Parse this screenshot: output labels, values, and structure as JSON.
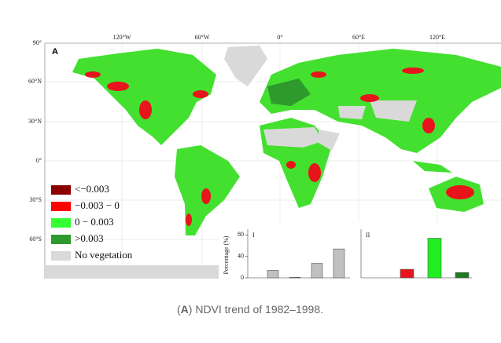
{
  "figure": {
    "panel": "A",
    "map": {
      "lat_labels": [
        "90°",
        "60°N",
        "30°N",
        "0°",
        "30°S",
        "60°S"
      ],
      "lon_labels": [
        "120°W",
        "60°W",
        "0°",
        "60°E",
        "120°E"
      ]
    },
    "legend": [
      {
        "label": "<−0.003",
        "color": "#8b0000"
      },
      {
        "label": "−0.003 − 0",
        "color": "#ff0000"
      },
      {
        "label": "0 − 0.003",
        "color": "#33ff33"
      },
      {
        "label": ">0.003",
        "color": "#2e9a2e"
      },
      {
        "label": "No vegetation",
        "color": "#d9d9d9"
      }
    ],
    "caption": {
      "open": "(",
      "label": "A",
      "text": ") NDVI trend of 1982–1998."
    }
  },
  "chart_data": [
    {
      "type": "bar",
      "title": "I",
      "ylabel": "Percentage (%)",
      "categories": [
        null,
        null,
        null,
        null
      ],
      "values": [
        14,
        1,
        27,
        54
      ],
      "color": "#c0c0c0",
      "ylim": [
        0,
        85
      ],
      "yticks": [
        0,
        40,
        80
      ]
    },
    {
      "type": "bar",
      "title": "II",
      "categories": [
        null,
        null,
        null,
        null
      ],
      "values": [
        0,
        16,
        74,
        10
      ],
      "colors": [
        "#8b0000",
        "#e8141c",
        "#22ee22",
        "#1f7a1f"
      ],
      "ylim": [
        0,
        85
      ]
    }
  ]
}
